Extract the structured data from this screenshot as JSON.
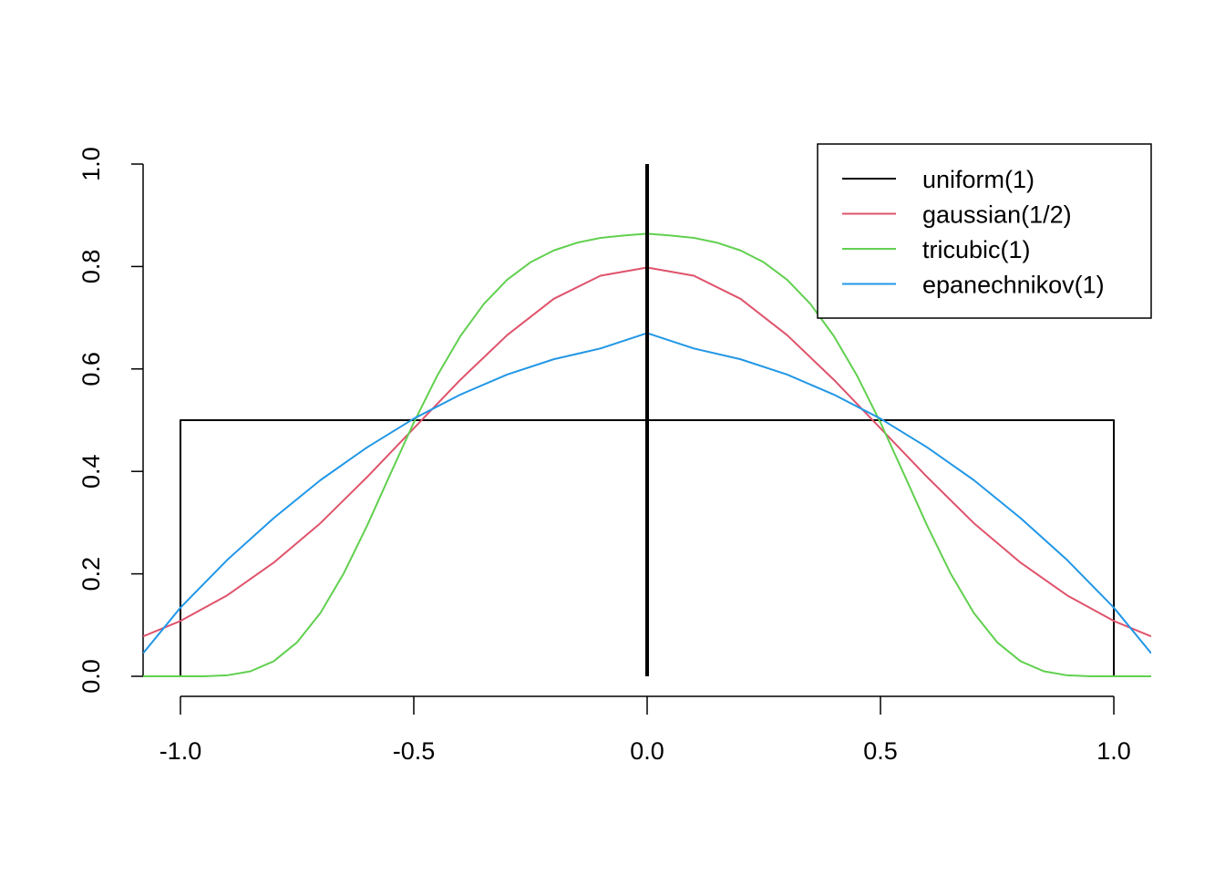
{
  "chart_data": {
    "type": "line",
    "title": "",
    "xlabel": "",
    "ylabel": "",
    "xlim": [
      -1.08,
      1.08
    ],
    "ylim": [
      0,
      1
    ],
    "grid": false,
    "legend_position": "top-right",
    "x_ticks": [
      -1.0,
      -0.5,
      0.0,
      0.5,
      1.0
    ],
    "x_tick_labels": [
      "-1.0",
      "-0.5",
      "0.0",
      "0.5",
      "1.0"
    ],
    "y_ticks": [
      0.0,
      0.2,
      0.4,
      0.6,
      0.8,
      1.0
    ],
    "y_tick_labels": [
      "0.0",
      "0.2",
      "0.4",
      "0.6",
      "0.8",
      "1.0"
    ],
    "vertical_line": {
      "x": 0.0,
      "y": [
        0,
        1
      ],
      "color": "#000000"
    },
    "series": [
      {
        "name": "uniform(1)",
        "color": "#000000",
        "x": [
          -1.08,
          -1.0,
          -1.0,
          1.0,
          1.0,
          1.08
        ],
        "y": [
          0.0,
          0.0,
          0.5,
          0.5,
          0.0,
          0.0
        ]
      },
      {
        "name": "gaussian(1/2)",
        "color": "#DF536B",
        "x": [
          -1.08,
          -1.0,
          -0.9,
          -0.8,
          -0.7,
          -0.6,
          -0.5,
          -0.4,
          -0.3,
          -0.2,
          -0.1,
          0.0,
          0.1,
          0.2,
          0.3,
          0.4,
          0.5,
          0.6,
          0.7,
          0.8,
          0.9,
          1.0,
          1.08
        ],
        "y": [
          0.078,
          0.108,
          0.158,
          0.222,
          0.299,
          0.389,
          0.484,
          0.579,
          0.666,
          0.737,
          0.782,
          0.798,
          0.782,
          0.737,
          0.666,
          0.579,
          0.484,
          0.389,
          0.299,
          0.222,
          0.158,
          0.108,
          0.078
        ]
      },
      {
        "name": "tricubic(1)",
        "color": "#61D04F",
        "x": [
          -1.08,
          -1.0,
          -0.95,
          -0.9,
          -0.85,
          -0.8,
          -0.75,
          -0.7,
          -0.65,
          -0.6,
          -0.55,
          -0.5,
          -0.45,
          -0.4,
          -0.35,
          -0.3,
          -0.25,
          -0.2,
          -0.15,
          -0.1,
          -0.05,
          0.0,
          0.05,
          0.1,
          0.15,
          0.2,
          0.25,
          0.3,
          0.35,
          0.4,
          0.45,
          0.5,
          0.55,
          0.6,
          0.65,
          0.7,
          0.75,
          0.8,
          0.85,
          0.9,
          0.95,
          1.0,
          1.08
        ],
        "y": [
          0.0,
          0.0,
          0.0001,
          0.0019,
          0.0098,
          0.0295,
          0.0664,
          0.1237,
          0.2011,
          0.2942,
          0.3953,
          0.4953,
          0.5865,
          0.6644,
          0.7268,
          0.7741,
          0.8082,
          0.8314,
          0.8465,
          0.8559,
          0.8605,
          0.8642,
          0.8605,
          0.8559,
          0.8465,
          0.8314,
          0.8082,
          0.7741,
          0.7268,
          0.6644,
          0.5865,
          0.4953,
          0.3953,
          0.2942,
          0.2011,
          0.1237,
          0.0664,
          0.0295,
          0.0098,
          0.0019,
          0.0001,
          0.0,
          0.0
        ]
      },
      {
        "name": "epanechnikov(1)",
        "color": "#2297E6",
        "x": [
          -1.08,
          -1.0,
          -0.9,
          -0.8,
          -0.7,
          -0.6,
          -0.5,
          -0.4,
          -0.3,
          -0.2,
          -0.1,
          0.0,
          0.1,
          0.2,
          0.3,
          0.4,
          0.5,
          0.6,
          0.7,
          0.8,
          0.9,
          1.0,
          1.08
        ],
        "y": [
          0.045,
          0.134,
          0.227,
          0.309,
          0.383,
          0.447,
          0.503,
          0.55,
          0.589,
          0.619,
          0.64,
          0.67,
          0.64,
          0.619,
          0.589,
          0.55,
          0.503,
          0.447,
          0.383,
          0.309,
          0.227,
          0.134,
          0.045
        ]
      }
    ]
  }
}
